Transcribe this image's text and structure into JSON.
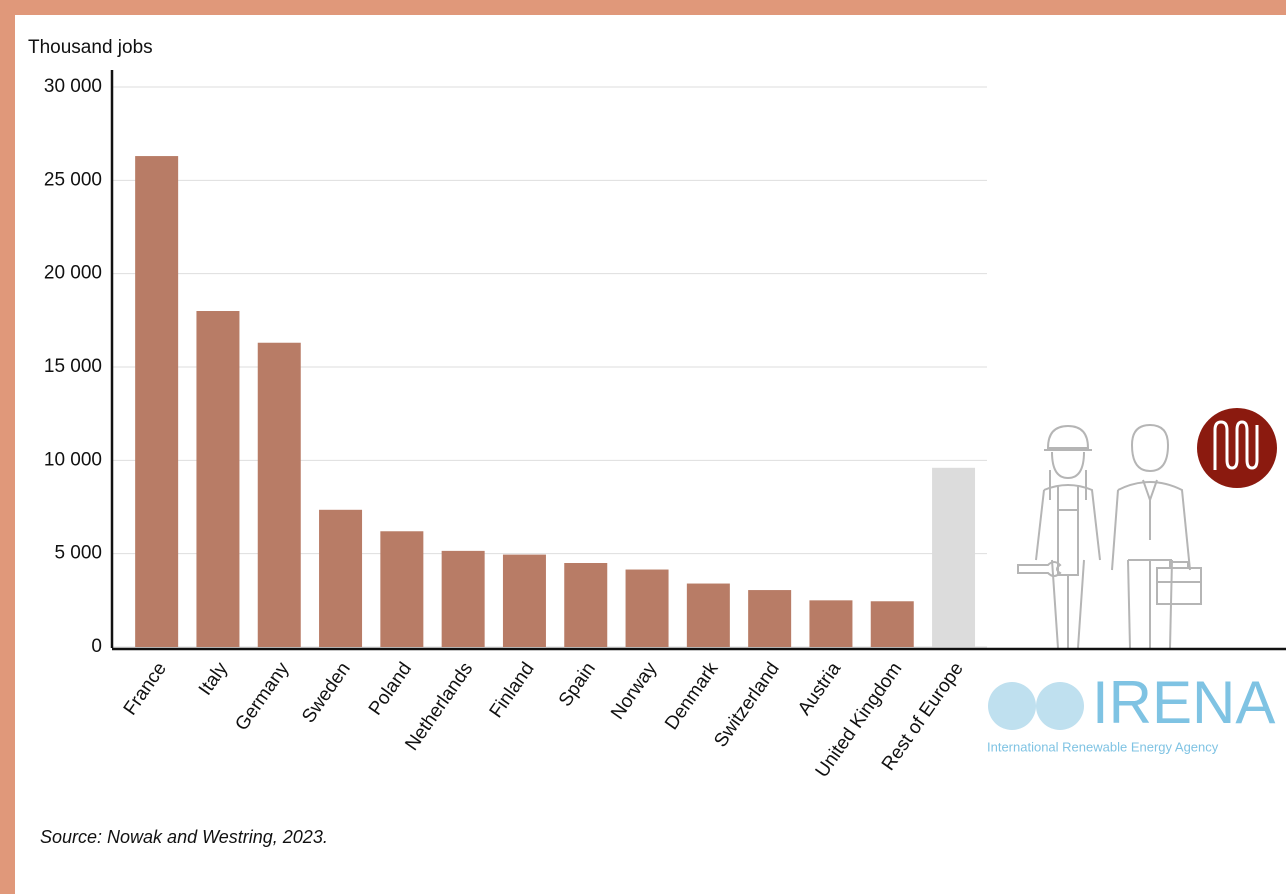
{
  "chart_data": {
    "type": "bar",
    "y_label": "Thousand jobs",
    "categories": [
      "France",
      "Italy",
      "Germany",
      "Sweden",
      "Poland",
      "Netherlands",
      "Finland",
      "Spain",
      "Norway",
      "Denmark",
      "Switzerland",
      "Austria",
      "United Kingdom",
      "Rest of Europe"
    ],
    "values": [
      26300,
      18000,
      16300,
      7350,
      6200,
      5150,
      4950,
      4500,
      4150,
      3400,
      3050,
      2500,
      2450,
      9600
    ],
    "colors": [
      "#b87c66",
      "#b87c66",
      "#b87c66",
      "#b87c66",
      "#b87c66",
      "#b87c66",
      "#b87c66",
      "#b87c66",
      "#b87c66",
      "#b87c66",
      "#b87c66",
      "#b87c66",
      "#b87c66",
      "#dcdcdc"
    ],
    "ylim": [
      0,
      30000
    ],
    "yticks": [
      0,
      {
        "value": 5000,
        "label": "5 000"
      },
      {
        "value": 10000,
        "label": "10 000"
      },
      {
        "value": 15000,
        "label": "15 000"
      },
      {
        "value": 20000,
        "label": "20 000"
      },
      {
        "value": 25000,
        "label": "25 000"
      },
      {
        "value": 30000,
        "label": "30 000"
      }
    ],
    "grid": true,
    "source": "Source: Nowak and Westring, 2023."
  },
  "logo": {
    "name": "IRENA",
    "tagline": "International Renewable Energy Agency"
  }
}
